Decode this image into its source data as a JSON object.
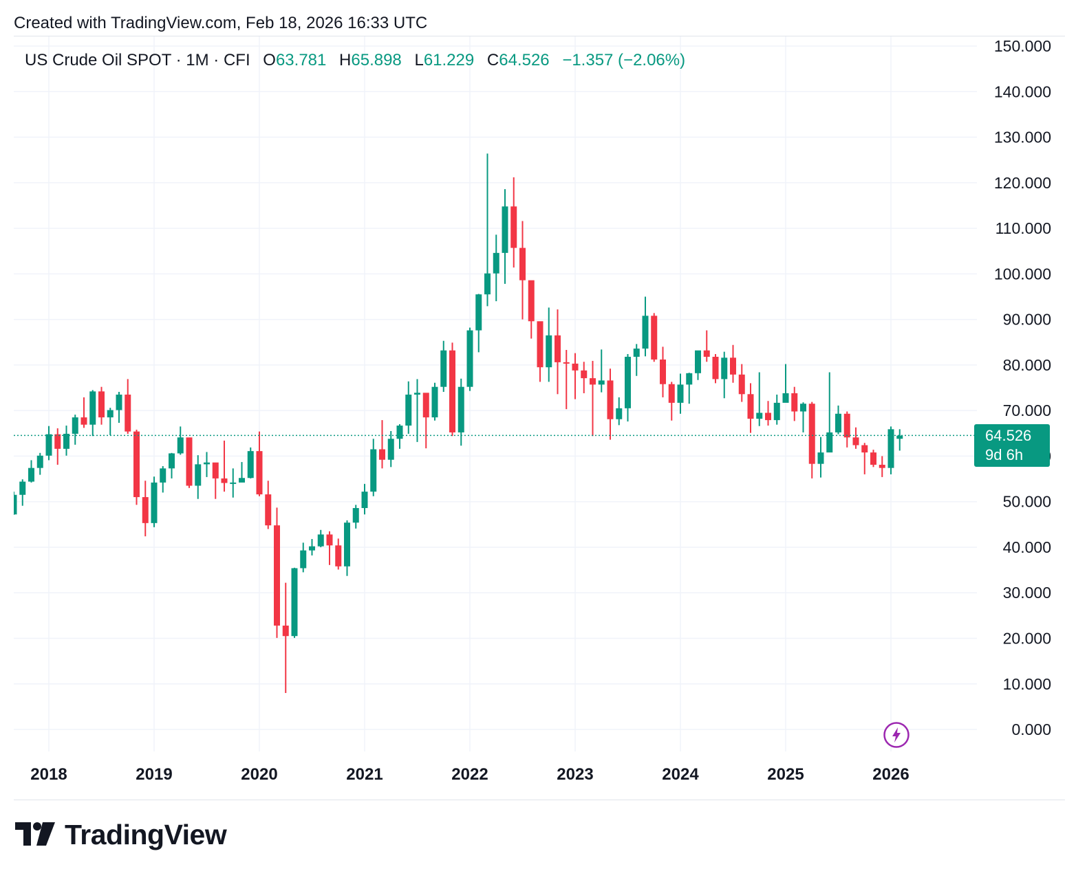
{
  "header": {
    "created_text": "Created with TradingView.com, Feb 18, 2026 16:33 UTC"
  },
  "legend": {
    "symbol": "US Crude Oil SPOT · 1M · CFI",
    "o_label": "O",
    "o_value": "63.781",
    "h_label": "H",
    "h_value": "65.898",
    "l_label": "L",
    "l_value": "61.229",
    "c_label": "C",
    "c_value": "64.526",
    "change": "−1.357 (−2.06%)"
  },
  "price_label": {
    "price": "64.526",
    "countdown": "9d 6h"
  },
  "footer": {
    "logo_text": "TradingView"
  },
  "colors": {
    "up": "#089981",
    "down": "#F23645",
    "grid": "#f0f3fa",
    "text": "#131722",
    "accent_icon": "#9c27b0"
  },
  "icons": {
    "snapshot": "lightning-bolt-icon",
    "logo": "tradingview-logo-icon"
  },
  "chart_data": {
    "type": "candlestick",
    "title": "US Crude Oil SPOT · 1M · CFI",
    "y_range": [
      0,
      150
    ],
    "y_ticks": [
      "150.000",
      "140.000",
      "130.000",
      "120.000",
      "110.000",
      "100.000",
      "90.000",
      "80.000",
      "70.000",
      "60.000",
      "50.000",
      "40.000",
      "30.000",
      "20.000",
      "10.000",
      "0.000"
    ],
    "x_ticks": [
      "2018",
      "2019",
      "2020",
      "2021",
      "2022",
      "2023",
      "2024",
      "2025",
      "2026"
    ],
    "last_price": 64.526,
    "candles": [
      {
        "t": "2017-09",
        "o": 47.2,
        "h": 52.2,
        "l": 47.1,
        "c": 51.5
      },
      {
        "t": "2017-10",
        "o": 51.5,
        "h": 54.9,
        "l": 49.1,
        "c": 54.4
      },
      {
        "t": "2017-11",
        "o": 54.4,
        "h": 59.1,
        "l": 54.2,
        "c": 57.4
      },
      {
        "t": "2017-12",
        "o": 57.4,
        "h": 60.7,
        "l": 55.9,
        "c": 60.1
      },
      {
        "t": "2018-01",
        "o": 60.1,
        "h": 66.6,
        "l": 59.1,
        "c": 64.8
      },
      {
        "t": "2018-02",
        "o": 64.8,
        "h": 66.1,
        "l": 58.1,
        "c": 61.6
      },
      {
        "t": "2018-03",
        "o": 61.6,
        "h": 66.7,
        "l": 60.1,
        "c": 64.9
      },
      {
        "t": "2018-04",
        "o": 64.9,
        "h": 69.1,
        "l": 62.5,
        "c": 68.5
      },
      {
        "t": "2018-05",
        "o": 68.5,
        "h": 72.9,
        "l": 66.2,
        "c": 66.9
      },
      {
        "t": "2018-06",
        "o": 66.9,
        "h": 74.5,
        "l": 64.4,
        "c": 74.2
      },
      {
        "t": "2018-07",
        "o": 74.2,
        "h": 75.2,
        "l": 66.9,
        "c": 68.5
      },
      {
        "t": "2018-08",
        "o": 68.5,
        "h": 70.6,
        "l": 64.6,
        "c": 70.1
      },
      {
        "t": "2018-09",
        "o": 70.1,
        "h": 74.1,
        "l": 67.3,
        "c": 73.5
      },
      {
        "t": "2018-10",
        "o": 73.5,
        "h": 76.9,
        "l": 64.9,
        "c": 65.4
      },
      {
        "t": "2018-11",
        "o": 65.4,
        "h": 65.8,
        "l": 49.3,
        "c": 51.0
      },
      {
        "t": "2018-12",
        "o": 51.0,
        "h": 54.6,
        "l": 42.4,
        "c": 45.3
      },
      {
        "t": "2019-01",
        "o": 45.3,
        "h": 55.5,
        "l": 44.4,
        "c": 54.2
      },
      {
        "t": "2019-02",
        "o": 54.2,
        "h": 57.8,
        "l": 52.0,
        "c": 57.3
      },
      {
        "t": "2019-03",
        "o": 57.3,
        "h": 60.7,
        "l": 55.1,
        "c": 60.6
      },
      {
        "t": "2019-04",
        "o": 60.6,
        "h": 66.5,
        "l": 60.3,
        "c": 64.1
      },
      {
        "t": "2019-05",
        "o": 64.1,
        "h": 63.8,
        "l": 53.0,
        "c": 53.5
      },
      {
        "t": "2019-06",
        "o": 53.5,
        "h": 60.2,
        "l": 50.6,
        "c": 58.2
      },
      {
        "t": "2019-07",
        "o": 58.2,
        "h": 60.9,
        "l": 55.4,
        "c": 58.6
      },
      {
        "t": "2019-08",
        "o": 58.6,
        "h": 57.6,
        "l": 50.6,
        "c": 55.1
      },
      {
        "t": "2019-09",
        "o": 55.1,
        "h": 63.4,
        "l": 52.2,
        "c": 54.1
      },
      {
        "t": "2019-10",
        "o": 54.1,
        "h": 57.3,
        "l": 50.9,
        "c": 54.2
      },
      {
        "t": "2019-11",
        "o": 54.2,
        "h": 58.7,
        "l": 54.5,
        "c": 55.2
      },
      {
        "t": "2019-12",
        "o": 55.2,
        "h": 61.9,
        "l": 55.1,
        "c": 61.1
      },
      {
        "t": "2020-01",
        "o": 61.1,
        "h": 65.4,
        "l": 51.2,
        "c": 51.6
      },
      {
        "t": "2020-02",
        "o": 51.6,
        "h": 54.6,
        "l": 44.0,
        "c": 44.8
      },
      {
        "t": "2020-03",
        "o": 44.8,
        "h": 48.7,
        "l": 20.1,
        "c": 22.8
      },
      {
        "t": "2020-04",
        "o": 22.8,
        "h": 32.2,
        "l": 8.0,
        "c": 20.5
      },
      {
        "t": "2020-05",
        "o": 20.5,
        "h": 35.5,
        "l": 20.1,
        "c": 35.4
      },
      {
        "t": "2020-06",
        "o": 35.4,
        "h": 41.0,
        "l": 34.5,
        "c": 39.3
      },
      {
        "t": "2020-07",
        "o": 39.3,
        "h": 41.8,
        "l": 38.2,
        "c": 40.2
      },
      {
        "t": "2020-08",
        "o": 40.2,
        "h": 43.8,
        "l": 40.0,
        "c": 42.8
      },
      {
        "t": "2020-09",
        "o": 42.8,
        "h": 43.5,
        "l": 36.1,
        "c": 40.4
      },
      {
        "t": "2020-10",
        "o": 40.4,
        "h": 41.9,
        "l": 35.1,
        "c": 35.8
      },
      {
        "t": "2020-11",
        "o": 35.8,
        "h": 45.9,
        "l": 33.7,
        "c": 45.4
      },
      {
        "t": "2020-12",
        "o": 45.4,
        "h": 49.3,
        "l": 44.1,
        "c": 48.6
      },
      {
        "t": "2021-01",
        "o": 48.6,
        "h": 53.9,
        "l": 47.2,
        "c": 52.2
      },
      {
        "t": "2021-02",
        "o": 52.2,
        "h": 63.8,
        "l": 51.2,
        "c": 61.5
      },
      {
        "t": "2021-03",
        "o": 61.5,
        "h": 67.9,
        "l": 57.3,
        "c": 59.2
      },
      {
        "t": "2021-04",
        "o": 59.2,
        "h": 65.5,
        "l": 57.6,
        "c": 63.8
      },
      {
        "t": "2021-05",
        "o": 63.8,
        "h": 67.0,
        "l": 61.6,
        "c": 66.7
      },
      {
        "t": "2021-06",
        "o": 66.7,
        "h": 76.4,
        "l": 64.9,
        "c": 73.5
      },
      {
        "t": "2021-07",
        "o": 73.5,
        "h": 76.9,
        "l": 63.1,
        "c": 73.9
      },
      {
        "t": "2021-08",
        "o": 73.9,
        "h": 73.6,
        "l": 61.7,
        "c": 68.5
      },
      {
        "t": "2021-09",
        "o": 68.5,
        "h": 76.1,
        "l": 67.8,
        "c": 75.2
      },
      {
        "t": "2021-10",
        "o": 75.2,
        "h": 85.3,
        "l": 74.1,
        "c": 83.2
      },
      {
        "t": "2021-11",
        "o": 83.2,
        "h": 84.9,
        "l": 64.4,
        "c": 65.2
      },
      {
        "t": "2021-12",
        "o": 65.2,
        "h": 77.0,
        "l": 62.3,
        "c": 75.2
      },
      {
        "t": "2022-01",
        "o": 75.2,
        "h": 88.2,
        "l": 74.3,
        "c": 87.6
      },
      {
        "t": "2022-02",
        "o": 87.6,
        "h": 95.6,
        "l": 82.8,
        "c": 95.5
      },
      {
        "t": "2022-03",
        "o": 95.5,
        "h": 126.4,
        "l": 92.9,
        "c": 100.1
      },
      {
        "t": "2022-04",
        "o": 100.1,
        "h": 108.6,
        "l": 94.0,
        "c": 104.6
      },
      {
        "t": "2022-05",
        "o": 104.6,
        "h": 118.6,
        "l": 97.8,
        "c": 114.8
      },
      {
        "t": "2022-06",
        "o": 114.8,
        "h": 121.2,
        "l": 101.4,
        "c": 105.7
      },
      {
        "t": "2022-07",
        "o": 105.7,
        "h": 111.6,
        "l": 90.0,
        "c": 98.6
      },
      {
        "t": "2022-08",
        "o": 98.6,
        "h": 97.3,
        "l": 85.8,
        "c": 89.6
      },
      {
        "t": "2022-09",
        "o": 89.6,
        "h": 89.0,
        "l": 76.3,
        "c": 79.5
      },
      {
        "t": "2022-10",
        "o": 79.5,
        "h": 92.6,
        "l": 76.3,
        "c": 86.5
      },
      {
        "t": "2022-11",
        "o": 86.5,
        "h": 92.2,
        "l": 73.6,
        "c": 80.6
      },
      {
        "t": "2022-12",
        "o": 80.6,
        "h": 83.3,
        "l": 70.3,
        "c": 80.3
      },
      {
        "t": "2023-01",
        "o": 80.3,
        "h": 82.6,
        "l": 72.5,
        "c": 78.8
      },
      {
        "t": "2023-02",
        "o": 78.8,
        "h": 80.7,
        "l": 73.8,
        "c": 77.1
      },
      {
        "t": "2023-03",
        "o": 77.1,
        "h": 80.9,
        "l": 64.4,
        "c": 75.7
      },
      {
        "t": "2023-04",
        "o": 75.7,
        "h": 83.4,
        "l": 74.0,
        "c": 76.6
      },
      {
        "t": "2023-05",
        "o": 76.6,
        "h": 79.2,
        "l": 63.6,
        "c": 68.1
      },
      {
        "t": "2023-06",
        "o": 68.1,
        "h": 72.9,
        "l": 66.8,
        "c": 70.5
      },
      {
        "t": "2023-07",
        "o": 70.5,
        "h": 82.4,
        "l": 67.6,
        "c": 81.8
      },
      {
        "t": "2023-08",
        "o": 81.8,
        "h": 84.6,
        "l": 77.6,
        "c": 83.6
      },
      {
        "t": "2023-09",
        "o": 83.6,
        "h": 95.0,
        "l": 81.9,
        "c": 90.8
      },
      {
        "t": "2023-10",
        "o": 90.8,
        "h": 91.4,
        "l": 80.7,
        "c": 81.2
      },
      {
        "t": "2023-11",
        "o": 81.2,
        "h": 84.0,
        "l": 72.9,
        "c": 75.8
      },
      {
        "t": "2023-12",
        "o": 75.8,
        "h": 76.3,
        "l": 67.8,
        "c": 71.7
      },
      {
        "t": "2024-01",
        "o": 71.7,
        "h": 78.1,
        "l": 69.3,
        "c": 75.7
      },
      {
        "t": "2024-02",
        "o": 75.7,
        "h": 78.3,
        "l": 71.5,
        "c": 78.2
      },
      {
        "t": "2024-03",
        "o": 78.2,
        "h": 83.1,
        "l": 76.7,
        "c": 83.2
      },
      {
        "t": "2024-04",
        "o": 83.2,
        "h": 87.6,
        "l": 80.7,
        "c": 81.8
      },
      {
        "t": "2024-05",
        "o": 81.8,
        "h": 82.4,
        "l": 76.0,
        "c": 76.9
      },
      {
        "t": "2024-06",
        "o": 76.9,
        "h": 82.9,
        "l": 72.7,
        "c": 81.6
      },
      {
        "t": "2024-07",
        "o": 81.6,
        "h": 84.4,
        "l": 76.1,
        "c": 77.9
      },
      {
        "t": "2024-08",
        "o": 77.9,
        "h": 80.2,
        "l": 71.9,
        "c": 73.6
      },
      {
        "t": "2024-09",
        "o": 73.6,
        "h": 76.0,
        "l": 65.1,
        "c": 68.2
      },
      {
        "t": "2024-10",
        "o": 68.2,
        "h": 78.4,
        "l": 66.6,
        "c": 69.5
      },
      {
        "t": "2024-11",
        "o": 69.5,
        "h": 72.1,
        "l": 66.7,
        "c": 67.9
      },
      {
        "t": "2024-12",
        "o": 67.9,
        "h": 73.5,
        "l": 66.9,
        "c": 71.7
      },
      {
        "t": "2025-01",
        "o": 71.7,
        "h": 80.2,
        "l": 72.8,
        "c": 73.8
      },
      {
        "t": "2025-02",
        "o": 73.8,
        "h": 75.2,
        "l": 67.7,
        "c": 69.8
      },
      {
        "t": "2025-03",
        "o": 69.8,
        "h": 71.8,
        "l": 65.2,
        "c": 71.5
      },
      {
        "t": "2025-04",
        "o": 71.5,
        "h": 71.9,
        "l": 55.1,
        "c": 58.3
      },
      {
        "t": "2025-05",
        "o": 58.3,
        "h": 64.2,
        "l": 55.3,
        "c": 60.8
      },
      {
        "t": "2025-06",
        "o": 60.8,
        "h": 78.4,
        "l": 60.9,
        "c": 65.2
      },
      {
        "t": "2025-07",
        "o": 65.2,
        "h": 71.1,
        "l": 64.8,
        "c": 69.3
      },
      {
        "t": "2025-08",
        "o": 69.3,
        "h": 69.8,
        "l": 61.9,
        "c": 64.1
      },
      {
        "t": "2025-09",
        "o": 64.1,
        "h": 66.3,
        "l": 61.6,
        "c": 62.4
      },
      {
        "t": "2025-10",
        "o": 62.4,
        "h": 62.9,
        "l": 56.0,
        "c": 60.8
      },
      {
        "t": "2025-11",
        "o": 60.8,
        "h": 61.4,
        "l": 57.6,
        "c": 58.1
      },
      {
        "t": "2025-12",
        "o": 58.1,
        "h": 60.0,
        "l": 55.4,
        "c": 57.4
      },
      {
        "t": "2026-01",
        "o": 57.4,
        "h": 66.5,
        "l": 56.0,
        "c": 65.9
      },
      {
        "t": "2026-02",
        "o": 63.8,
        "h": 65.9,
        "l": 61.2,
        "c": 64.5
      }
    ]
  }
}
